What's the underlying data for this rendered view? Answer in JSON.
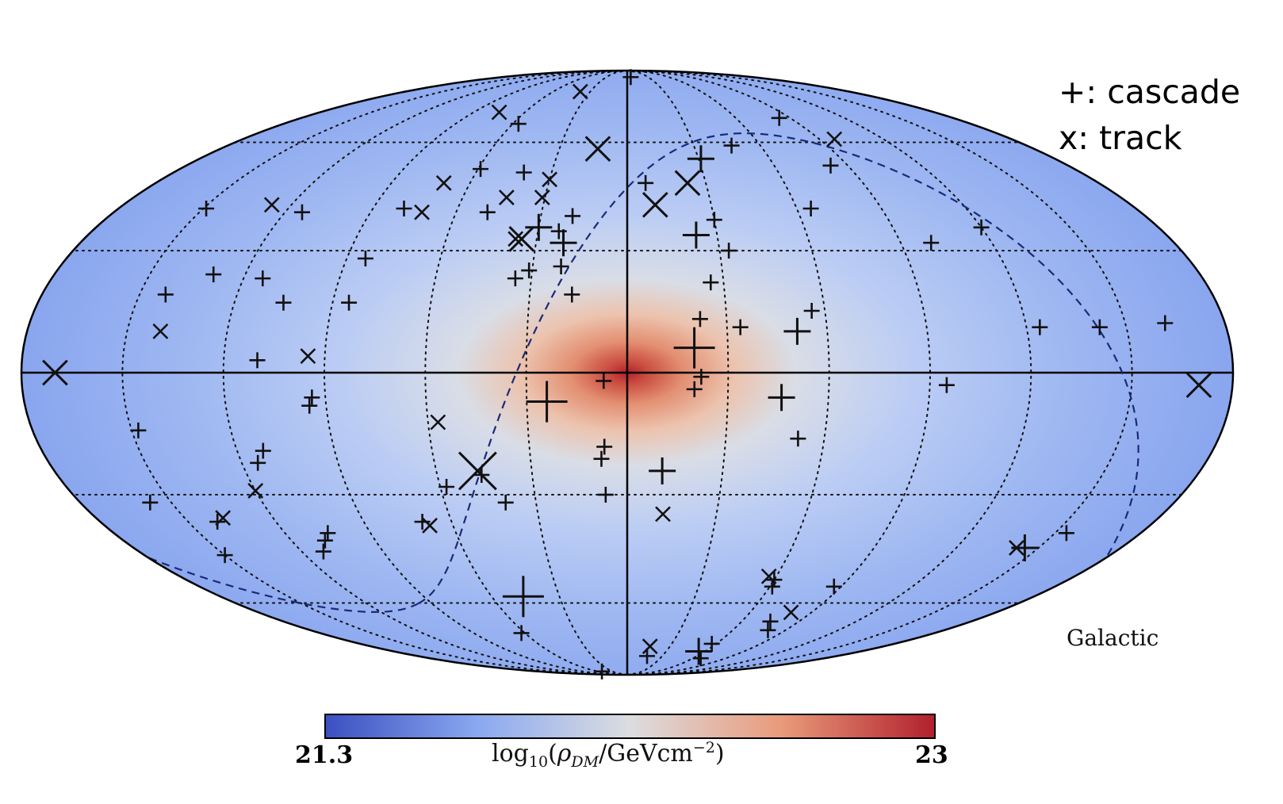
{
  "chart_data": {
    "type": "scatter",
    "projection": "mollweide",
    "coordinate_frame": "Galactic",
    "grid": true,
    "background_map": {
      "quantity": "log10(ρ_DM / GeVcm^-2)",
      "colorbar": {
        "min": "21.3",
        "max": "23",
        "label_text": "log10(ρDM/GeVcm−2)",
        "colors": [
          "#3a4fc1",
          "#8aa8f0",
          "#dcdde0",
          "#e99a7a",
          "#b1202c"
        ]
      }
    },
    "legend": {
      "cascade": "+: cascade",
      "track": "x: track",
      "placement": "top-right"
    },
    "series": [
      {
        "name": "cascade",
        "marker": "+",
        "points": [
          {
            "l": -5,
            "b": 85,
            "s": 1
          },
          {
            "l": 57,
            "b": 66,
            "s": 1
          },
          {
            "l": 59,
            "b": 52,
            "s": 1
          },
          {
            "l": 41,
            "b": 51,
            "s": 1
          },
          {
            "l": 19,
            "b": 39,
            "s": 1
          },
          {
            "l": 21,
            "b": 32,
            "s": 2
          },
          {
            "l": 23,
            "b": 35,
            "s": 1
          },
          {
            "l": -47,
            "b": 59,
            "s": 1
          },
          {
            "l": 49,
            "b": 40,
            "s": 1
          },
          {
            "l": 79,
            "b": 41,
            "s": 1
          },
          {
            "l": 84,
            "b": 28,
            "s": 1
          },
          {
            "l": 114,
            "b": 23,
            "s": 1
          },
          {
            "l": 85,
            "b": 17,
            "s": 1
          },
          {
            "l": 105,
            "b": 17,
            "s": 1
          },
          {
            "l": 130,
            "b": 24,
            "s": 1
          },
          {
            "l": 142,
            "b": 19,
            "s": 1
          },
          {
            "l": 114,
            "b": 40,
            "s": 1
          },
          {
            "l": 149,
            "b": 41,
            "s": 1
          },
          {
            "l": 110,
            "b": 3,
            "s": 1
          },
          {
            "l": -7,
            "b": 48,
            "s": 1
          },
          {
            "l": 21,
            "b": 26,
            "s": 1
          },
          {
            "l": 17,
            "b": 19,
            "s": 1
          },
          {
            "l": 31,
            "b": 25,
            "s": 1
          },
          {
            "l": 35,
            "b": 23,
            "s": 1
          },
          {
            "l": 30,
            "b": 36,
            "s": 2
          },
          {
            "l": -26,
            "b": 22,
            "s": 1
          },
          {
            "l": -30,
            "b": 38,
            "s": 1
          },
          {
            "l": -31,
            "b": 55,
            "s": 2
          },
          {
            "l": -23,
            "b": 34,
            "s": 2
          },
          {
            "l": -33,
            "b": 30,
            "s": 1
          },
          {
            "l": -34,
            "b": 11,
            "s": 1
          },
          {
            "l": -22,
            "b": 13,
            "s": 1
          },
          {
            "l": -20,
            "b": 6,
            "s": 3
          },
          {
            "l": -56,
            "b": 15,
            "s": 1
          },
          {
            "l": -83,
            "b": 53,
            "s": 1
          },
          {
            "l": -100,
            "b": 32,
            "s": 1
          },
          {
            "l": -65,
            "b": 41,
            "s": 1
          },
          {
            "l": -84,
            "b": 68,
            "s": 1
          },
          {
            "l": -120,
            "b": 36,
            "s": 1
          },
          {
            "l": -142,
            "b": 11,
            "s": 1
          },
          {
            "l": -124,
            "b": 11,
            "s": 1
          },
          {
            "l": -95,
            "b": -3,
            "s": 1
          },
          {
            "l": -51,
            "b": 10,
            "s": 2
          },
          {
            "l": -46,
            "b": -6,
            "s": 2
          },
          {
            "l": -52,
            "b": -16,
            "s": 1
          },
          {
            "l": -20,
            "b": -4,
            "s": 1
          },
          {
            "l": -22,
            "b": -1,
            "s": 1
          },
          {
            "l": 7,
            "b": -2,
            "s": 1
          },
          {
            "l": 24,
            "b": -7,
            "s": 3
          },
          {
            "l": 7,
            "b": -18,
            "s": 1
          },
          {
            "l": 8,
            "b": -21,
            "s": 1
          },
          {
            "l": 7,
            "b": -30,
            "s": 1
          },
          {
            "l": -11,
            "b": -24,
            "s": 2
          },
          {
            "l": 46,
            "b": -25,
            "s": 1
          },
          {
            "l": 58,
            "b": -28,
            "s": 1
          },
          {
            "l": 40,
            "b": -32,
            "s": 1
          },
          {
            "l": 70,
            "b": -37,
            "s": 1
          },
          {
            "l": 94,
            "b": -6,
            "s": 1
          },
          {
            "l": 95,
            "b": -8,
            "s": 1
          },
          {
            "l": 112,
            "b": -19,
            "s": 1
          },
          {
            "l": 115,
            "b": -22,
            "s": 1
          },
          {
            "l": 148,
            "b": -14,
            "s": 1
          },
          {
            "l": 157,
            "b": -32,
            "s": 1
          },
          {
            "l": 150,
            "b": -46,
            "s": 1
          },
          {
            "l": 140,
            "b": -37,
            "s": 1
          },
          {
            "l": 112,
            "b": -45,
            "s": 1
          },
          {
            "l": 108,
            "b": -42,
            "s": 1
          },
          {
            "l": 105,
            "b": -40,
            "s": 1
          },
          {
            "l": 46,
            "b": -58,
            "s": 3
          },
          {
            "l": 62,
            "b": -70,
            "s": 1
          },
          {
            "l": 51,
            "b": -87,
            "s": 1
          },
          {
            "l": -80,
            "b": -69,
            "s": 1
          },
          {
            "l": -87,
            "b": -55,
            "s": 1
          },
          {
            "l": -75,
            "b": -66,
            "s": 1
          },
          {
            "l": -67,
            "b": -80,
            "s": 1
          },
          {
            "l": -55,
            "b": -77,
            "s": 2
          },
          {
            "l": -57,
            "b": -74,
            "s": 1
          },
          {
            "l": -60,
            "b": -53,
            "s": 1
          },
          {
            "l": -61,
            "b": -55,
            "s": 1
          },
          {
            "l": -17,
            "b": -79,
            "s": 1
          },
          {
            "l": -145,
            "b": -44,
            "s": 2
          },
          {
            "l": -154,
            "b": -40,
            "s": 1
          },
          {
            "l": -162,
            "b": 12,
            "s": 1
          }
        ]
      },
      {
        "name": "track",
        "marker": "x",
        "points": [
          {
            "l": 38,
            "b": 78,
            "s": 1
          },
          {
            "l": 75,
            "b": 70,
            "s": 1
          },
          {
            "l": 13,
            "b": 58,
            "s": 2
          },
          {
            "l": -23,
            "b": 48,
            "s": 2
          },
          {
            "l": -10,
            "b": 42,
            "s": 2
          },
          {
            "l": 30,
            "b": 49,
            "s": 1
          },
          {
            "l": 31,
            "b": 44,
            "s": 1
          },
          {
            "l": 44,
            "b": 44,
            "s": 1
          },
          {
            "l": 70,
            "b": 48,
            "s": 1
          },
          {
            "l": 72,
            "b": 40,
            "s": 1
          },
          {
            "l": 35,
            "b": 33,
            "s": 2
          },
          {
            "l": 37,
            "b": 33,
            "s": 1
          },
          {
            "l": 127,
            "b": 42,
            "s": 1
          },
          {
            "l": 95,
            "b": 4,
            "s": 1
          },
          {
            "l": 140,
            "b": 10,
            "s": 1
          },
          {
            "l": 170,
            "b": 0,
            "s": 2
          },
          {
            "l": -97,
            "b": 61,
            "s": 1
          },
          {
            "l": -170,
            "b": -3,
            "s": 2
          },
          {
            "l": 57,
            "b": -12,
            "s": 1
          },
          {
            "l": 47,
            "b": -24,
            "s": 3
          },
          {
            "l": 68,
            "b": -38,
            "s": 1
          },
          {
            "l": 120,
            "b": -29,
            "s": 1
          },
          {
            "l": 137,
            "b": -36,
            "s": 1
          },
          {
            "l": -12,
            "b": -35,
            "s": 1
          },
          {
            "l": -57,
            "b": -52,
            "s": 1
          },
          {
            "l": -80,
            "b": -63,
            "s": 1
          },
          {
            "l": -16,
            "b": -75,
            "s": 1
          },
          {
            "l": -142,
            "b": -44,
            "s": 1
          }
        ]
      }
    ],
    "reference_curve": "dashed great circle (equatorial plane)"
  },
  "colors": {
    "accent_dashed_curve": "#1b2a78",
    "marker": "#111111"
  }
}
